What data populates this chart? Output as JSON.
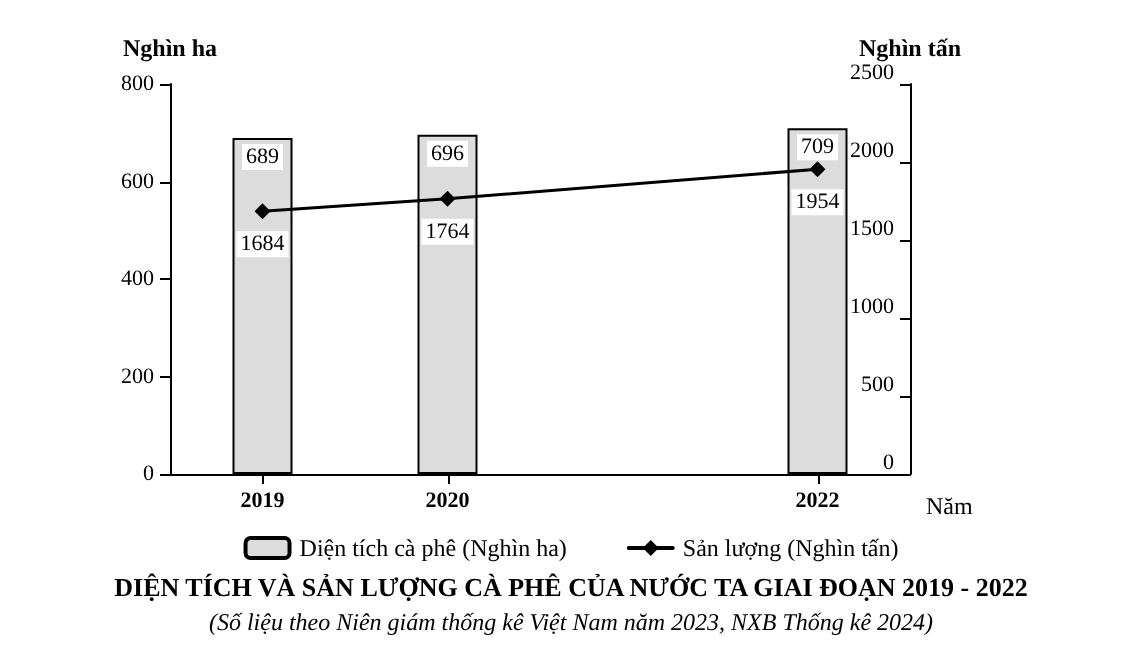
{
  "chart_data": {
    "type": "bar",
    "title": "DIỆN TÍCH VÀ SẢN LƯỢNG CÀ PHÊ CỦA NƯỚC TA GIAI ĐOẠN 2019 - 2022",
    "annotations": [
      "(Số liệu theo Niên giám thống kê Việt Nam năm 2023, NXB Thống kê 2024)"
    ],
    "xlabel": "Năm",
    "ylabel": "Nghìn ha",
    "y2label": "Nghìn tấn",
    "x": [
      2019,
      2020,
      2022
    ],
    "xlim": [
      2018.5,
      2022.5
    ],
    "xticks": [
      2019,
      2020,
      2022
    ],
    "ylim": [
      0,
      800
    ],
    "yticks": [
      0,
      200,
      400,
      600,
      800
    ],
    "y2lim": [
      0,
      2500
    ],
    "y2ticks": [
      0,
      500,
      1000,
      1500,
      2000,
      2500
    ],
    "series": [
      {
        "name": "Diện tích cà phê (Nghìn ha)",
        "color": "#dcdcdc",
        "values": [
          689,
          696,
          709
        ]
      },
      {
        "name": "Sản lượng (Nghìn tấn)",
        "type": "line",
        "axis": "y2",
        "color": "#000000",
        "values": [
          1684,
          1764,
          1954
        ]
      }
    ],
    "data_labels": true,
    "marker": "diamond",
    "line_style": "solid",
    "legend": "bottom",
    "grid": false
  }
}
